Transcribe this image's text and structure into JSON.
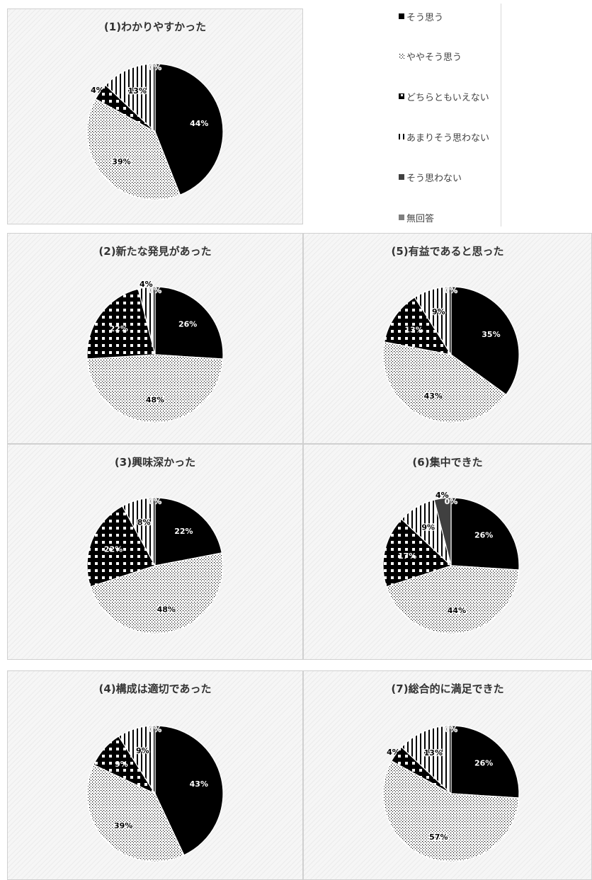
{
  "legend": {
    "items": [
      {
        "label": "そう思う",
        "pattern": "solid"
      },
      {
        "label": "ややそう思う",
        "pattern": "dots"
      },
      {
        "label": "どちらともいえない",
        "pattern": "squares"
      },
      {
        "label": "あまりそう思わない",
        "pattern": "vlines"
      },
      {
        "label": "そう思わない",
        "pattern": "dark"
      },
      {
        "label": "無回答",
        "pattern": "gray"
      }
    ]
  },
  "colors": {
    "solid": "#000000",
    "dark": "#404040",
    "gray": "#7f7f7f",
    "background": "#f6f6f6"
  },
  "chart_data": [
    {
      "type": "pie",
      "title": "(1)わかりやすかった",
      "categories": [
        "そう思う",
        "ややそう思う",
        "どちらともいえない",
        "あまりそう思わない",
        "そう思わない",
        "無回答"
      ],
      "values": [
        44,
        39,
        4,
        13,
        0,
        0
      ],
      "labels": [
        "44%",
        "39%",
        "4%",
        "13%",
        "0%",
        "0%"
      ]
    },
    {
      "type": "pie",
      "title": "(2)新たな発見があった",
      "categories": [
        "そう思う",
        "ややそう思う",
        "どちらともいえない",
        "あまりそう思わない",
        "そう思わない",
        "無回答"
      ],
      "values": [
        26,
        48,
        22,
        4,
        0,
        0
      ],
      "labels": [
        "26%",
        "48%",
        "22%",
        "4%",
        "0%",
        "0%"
      ]
    },
    {
      "type": "pie",
      "title": "(3)興味深かった",
      "categories": [
        "そう思う",
        "ややそう思う",
        "どちらともいえない",
        "あまりそう思わない",
        "そう思わない",
        "無回答"
      ],
      "values": [
        22,
        48,
        22,
        8,
        0,
        0
      ],
      "labels": [
        "22%",
        "48%",
        "22%",
        "8%",
        "0%",
        "0%"
      ]
    },
    {
      "type": "pie",
      "title": "(4)構成は適切であった",
      "categories": [
        "そう思う",
        "ややそう思う",
        "どちらともいえない",
        "あまりそう思わない",
        "そう思わない",
        "無回答"
      ],
      "values": [
        43,
        39,
        9,
        9,
        0,
        0
      ],
      "labels": [
        "43%",
        "39%",
        "9%",
        "9%",
        "0%",
        "0%"
      ]
    },
    {
      "type": "pie",
      "title": "(5)有益であると思った",
      "categories": [
        "そう思う",
        "ややそう思う",
        "どちらともいえない",
        "あまりそう思わない",
        "そう思わない",
        "無回答"
      ],
      "values": [
        35,
        43,
        13,
        9,
        0,
        0
      ],
      "labels": [
        "35%",
        "43%",
        "13%",
        "9%",
        "0%",
        "0%"
      ]
    },
    {
      "type": "pie",
      "title": "(6)集中できた",
      "categories": [
        "そう思う",
        "ややそう思う",
        "どちらともいえない",
        "あまりそう思わない",
        "そう思わない",
        "無回答"
      ],
      "values": [
        26,
        44,
        17,
        9,
        4,
        0
      ],
      "labels": [
        "26%",
        "44%",
        "17%",
        "9%",
        "4%",
        "0%"
      ]
    },
    {
      "type": "pie",
      "title": "(7)総合的に満足できた",
      "categories": [
        "そう思う",
        "ややそう思う",
        "どちらともいえない",
        "あまりそう思わない",
        "そう思わない",
        "無回答"
      ],
      "values": [
        26,
        57,
        4,
        13,
        0,
        0
      ],
      "labels": [
        "26%",
        "57%",
        "4%",
        "13%",
        "0%",
        "0%"
      ]
    }
  ]
}
